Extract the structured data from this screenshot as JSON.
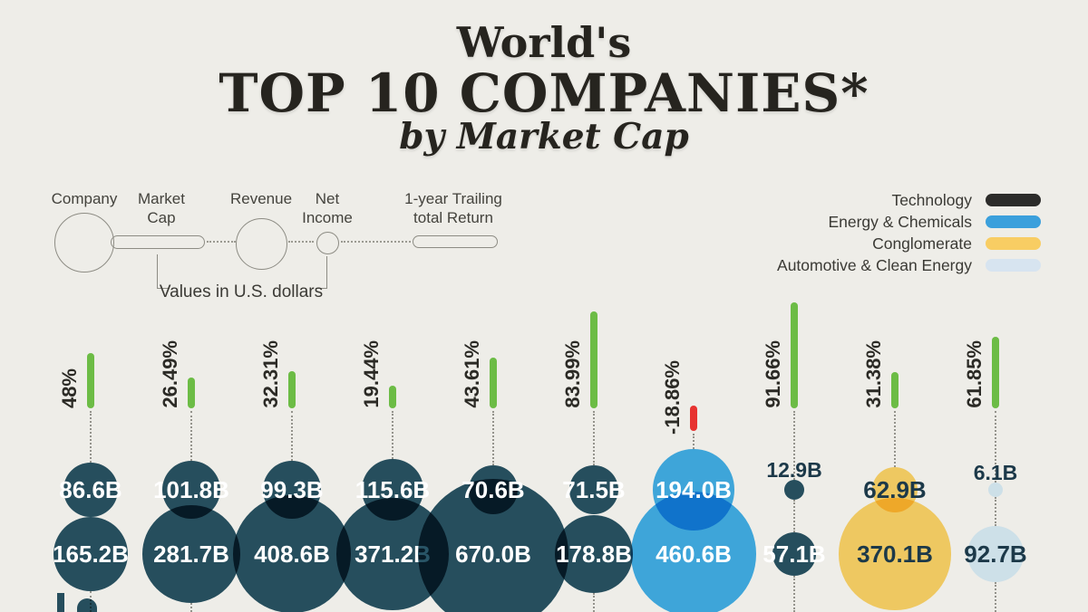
{
  "title": {
    "line1": "World's",
    "line2": "TOP 10 COMPANIES*",
    "line3": "by Market Cap"
  },
  "legend_diagram": {
    "company_label": "Company",
    "market_cap_label": "Market\nCap",
    "revenue_label": "Revenue",
    "net_income_label": "Net\nIncome",
    "return_label": "1-year Trailing\ntotal Return",
    "values_note": "Values in U.S. dollars"
  },
  "categories_legend": [
    {
      "label": "Technology",
      "color": "#2c2c2a"
    },
    {
      "label": "Energy & Chemicals",
      "color": "#3ba0dc"
    },
    {
      "label": "Conglomerate",
      "color": "#f8cd63"
    },
    {
      "label": "Automotive & Clean Energy",
      "color": "#d7e4f0"
    }
  ],
  "chart_data": {
    "type": "bubble",
    "title": "World's TOP 10 COMPANIES* by Market Cap",
    "unit": "Values in U.S. dollars (B = billions)",
    "metrics": [
      "1-year Trailing total Return (%)",
      "Net Income",
      "Revenue"
    ],
    "companies": [
      {
        "return_pct": "48%",
        "return_value": 48,
        "net_income_label": "86.6B",
        "net_income": 86.6,
        "revenue_label": "165.2B",
        "revenue": 165.2,
        "category": "Technology"
      },
      {
        "return_pct": "26.49%",
        "return_value": 26.49,
        "net_income_label": "101.8B",
        "net_income": 101.8,
        "revenue_label": "281.7B",
        "revenue": 281.7,
        "category": "Technology"
      },
      {
        "return_pct": "32.31%",
        "return_value": 32.31,
        "net_income_label": "99.3B",
        "net_income": 99.3,
        "revenue_label": "408.6B",
        "revenue": 408.6,
        "category": "Technology"
      },
      {
        "return_pct": "19.44%",
        "return_value": 19.44,
        "net_income_label": "115.6B",
        "net_income": 115.6,
        "revenue_label": "371.2B",
        "revenue": 371.2,
        "category": "Technology"
      },
      {
        "return_pct": "43.61%",
        "return_value": 43.61,
        "net_income_label": "70.6B",
        "net_income": 70.6,
        "revenue_label": "670.0B",
        "revenue": 670.0,
        "category": "Technology"
      },
      {
        "return_pct": "83.99%",
        "return_value": 83.99,
        "net_income_label": "71.5B",
        "net_income": 71.5,
        "revenue_label": "178.8B",
        "revenue": 178.8,
        "category": "Technology"
      },
      {
        "return_pct": "-18.86%",
        "return_value": -18.86,
        "net_income_label": "194.0B",
        "net_income": 194.0,
        "revenue_label": "460.6B",
        "revenue": 460.6,
        "category": "Energy & Chemicals"
      },
      {
        "return_pct": "91.66%",
        "return_value": 91.66,
        "net_income_label": "12.9B",
        "net_income": 12.9,
        "revenue_label": "57.1B",
        "revenue": 57.1,
        "category": "Technology"
      },
      {
        "return_pct": "31.38%",
        "return_value": 31.38,
        "net_income_label": "62.9B",
        "net_income": 62.9,
        "revenue_label": "370.1B",
        "revenue": 370.1,
        "category": "Conglomerate"
      },
      {
        "return_pct": "61.85%",
        "return_value": 61.85,
        "net_income_label": "6.1B",
        "net_income": 6.1,
        "revenue_label": "92.7B",
        "revenue": 92.7,
        "category": "Automotive & Clean Energy"
      }
    ],
    "bar_colors": {
      "positive": "#6cbc45",
      "negative": "#e73330"
    },
    "bubble_colors": {
      "Technology": "#285466",
      "Energy & Chemicals": "#42b2ef",
      "Conglomerate": "#ffd76b",
      "Automotive & Clean Energy": "#dcf1ff"
    },
    "value_text_colors": {
      "Technology": "#ffffff",
      "Energy & Chemicals": "#ffffff",
      "Conglomerate": "#1c3949",
      "Automotive & Clean Energy": "#1c3949"
    },
    "legend_position": "top-right",
    "grid": false
  }
}
